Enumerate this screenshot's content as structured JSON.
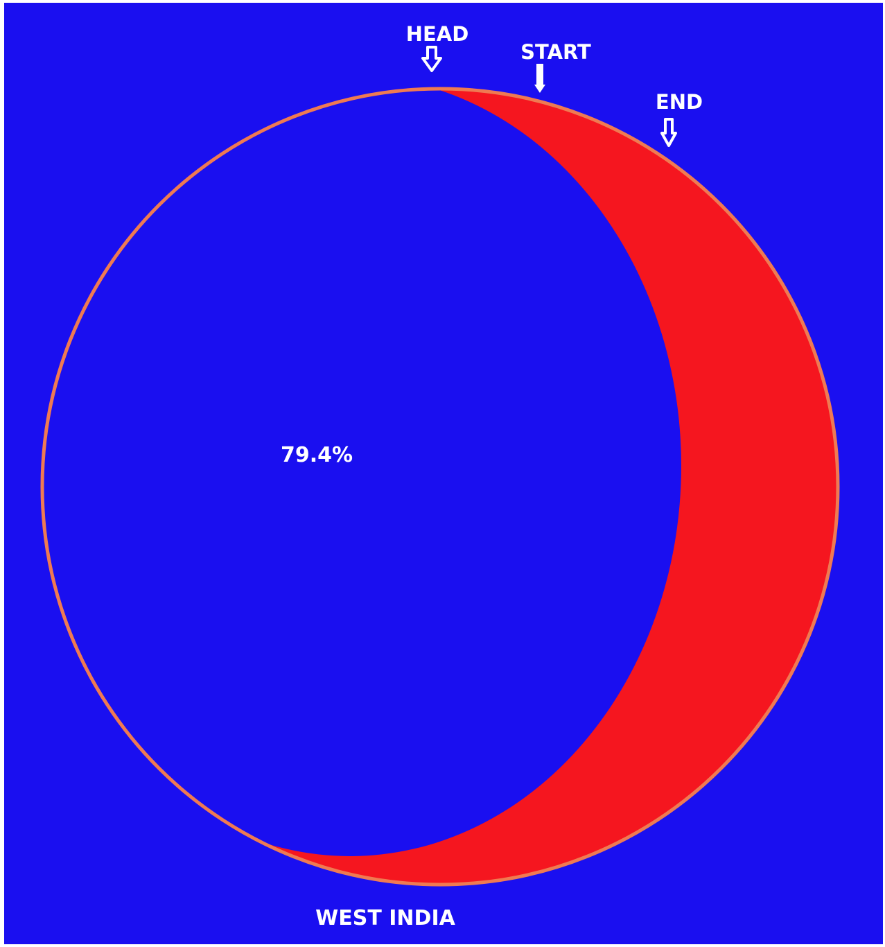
{
  "colors": {
    "background": "#1a0ff0",
    "eclipse_shadow": "#1a0ff0",
    "sun_visible": "#f5161f",
    "rim": "#ef7a52",
    "text": "#ffffff"
  },
  "labels": {
    "head": "HEAD",
    "start": "START",
    "end": "END",
    "coverage": "79.4%",
    "region": "WEST INDIA"
  },
  "eclipse": {
    "coverage_percent": 79.4
  },
  "icons": {
    "head_arrow": "down-arrow-outline-icon",
    "start_arrow": "down-arrow-solid-icon",
    "end_arrow": "down-arrow-outline-icon"
  }
}
